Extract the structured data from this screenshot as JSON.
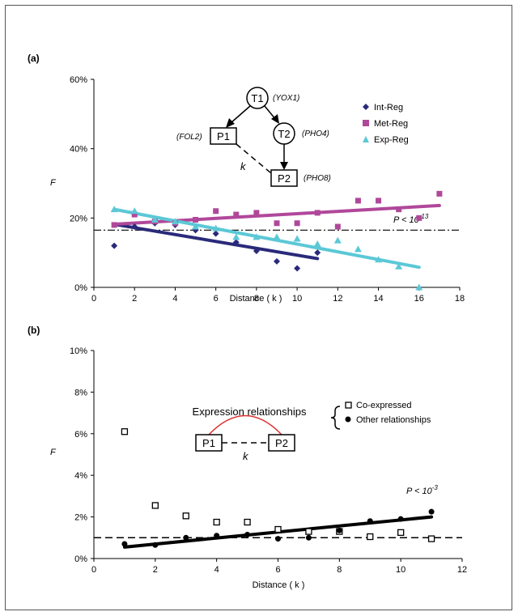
{
  "chart_data": [
    {
      "panel_label": "(a)",
      "type": "scatter",
      "xlabel": "Distance ( k )",
      "ylabel": "F",
      "xlim": [
        0,
        18
      ],
      "ylim": [
        0,
        60
      ],
      "x_ticks": [
        "0",
        "2",
        "4",
        "6",
        "8",
        "10",
        "12",
        "14",
        "16",
        "18"
      ],
      "y_ticks": [
        "0%",
        "20%",
        "40%",
        "60%"
      ],
      "annotation": "P < 10",
      "annotation_sup": "-13",
      "baseline": 16.5,
      "series": [
        {
          "name": "Int-Reg",
          "color": "#2a2a7a",
          "marker": "diamond",
          "x": [
            1,
            2,
            3,
            4,
            5,
            6,
            7,
            8,
            9,
            10,
            11
          ],
          "y": [
            12,
            17.5,
            18.5,
            18,
            16.5,
            15.5,
            13,
            10.5,
            7.5,
            5.5,
            10
          ],
          "fit": [
            [
              1,
              18.2
            ],
            [
              11,
              8.3
            ]
          ]
        },
        {
          "name": "Met-Reg",
          "color": "#b0489a",
          "marker": "square",
          "x": [
            1,
            2,
            3,
            4,
            5,
            6,
            7,
            8,
            9,
            10,
            11,
            12,
            13,
            14,
            15,
            16,
            17
          ],
          "y": [
            18,
            21,
            19,
            18.5,
            19.5,
            22,
            21,
            21.5,
            18.5,
            18.5,
            21.5,
            17.5,
            25,
            25,
            22.5,
            20,
            27
          ],
          "fit": [
            [
              1,
              18.2
            ],
            [
              17,
              23.6
            ]
          ]
        },
        {
          "name": "Exp-Reg",
          "color": "#5bc8d6",
          "marker": "triangle",
          "x": [
            1,
            2,
            3,
            4,
            5,
            6,
            7,
            8,
            9,
            10,
            11,
            12,
            13,
            14,
            15,
            16
          ],
          "y": [
            22.5,
            22,
            19.5,
            19,
            17.5,
            17,
            14.5,
            14.5,
            14.5,
            14,
            12.5,
            13.5,
            11,
            8,
            6,
            0
          ],
          "fit": [
            [
              1,
              22.5
            ],
            [
              16,
              5.8
            ]
          ]
        }
      ],
      "inset": {
        "nodes": [
          {
            "id": "T1",
            "label": "T1",
            "gene": "(YOX1)"
          },
          {
            "id": "T2",
            "label": "T2",
            "gene": "(PHO4)"
          },
          {
            "id": "P1",
            "label": "P1",
            "gene": "(FOL2)"
          },
          {
            "id": "P2",
            "label": "P2",
            "gene": "(PHO8)"
          }
        ],
        "edge_label": "k"
      }
    },
    {
      "panel_label": "(b)",
      "type": "scatter",
      "xlabel": "Distance ( k )",
      "ylabel": "F",
      "xlim": [
        0,
        12
      ],
      "ylim": [
        0,
        10
      ],
      "x_ticks": [
        "0",
        "2",
        "4",
        "6",
        "8",
        "10",
        "12"
      ],
      "y_ticks": [
        "0%",
        "2%",
        "4%",
        "6%",
        "8%",
        "10%"
      ],
      "annotation": "P < 10",
      "annotation_sup": "-3",
      "baseline": 1.0,
      "series": [
        {
          "name": "Co-expressed",
          "marker": "open-square",
          "x": [
            1,
            2,
            3,
            4,
            5,
            6,
            7,
            8,
            9,
            10,
            11
          ],
          "y": [
            6.1,
            2.55,
            2.05,
            1.75,
            1.75,
            1.4,
            1.3,
            1.3,
            1.05,
            1.25,
            0.95
          ]
        },
        {
          "name": "Other relationships",
          "marker": "filled-circle",
          "x": [
            1,
            2,
            3,
            4,
            5,
            6,
            7,
            8,
            9,
            10,
            11
          ],
          "y": [
            0.7,
            0.65,
            1.0,
            1.1,
            1.15,
            0.95,
            1.0,
            1.35,
            1.8,
            1.9,
            2.25
          ]
        }
      ],
      "fit": [
        [
          1,
          0.55
        ],
        [
          11,
          2.0
        ]
      ],
      "inset": {
        "title": "Expression relationships",
        "left_node": "P1",
        "right_node": "P2",
        "edge_label": "k"
      }
    }
  ]
}
